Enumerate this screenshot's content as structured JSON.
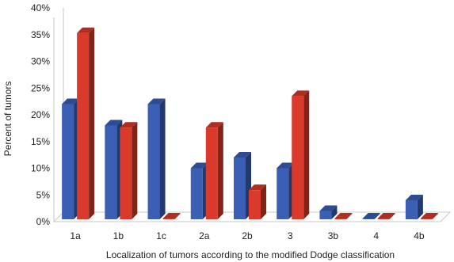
{
  "chart_data": {
    "type": "bar",
    "title": "",
    "xlabel": "Localization of tumors according to the modified Dodge classification",
    "ylabel": "Percent of tumors",
    "categories": [
      "1a",
      "1b",
      "1c",
      "2a",
      "2b",
      "3",
      "3b",
      "4",
      "4b"
    ],
    "series": [
      {
        "color": "#3a5fb5",
        "values": [
          22,
          18,
          22,
          10,
          12,
          10,
          2,
          0,
          4
        ]
      },
      {
        "color": "#d93a2b",
        "values": [
          35.3,
          17.6,
          0,
          17.6,
          5.9,
          23.5,
          0,
          0,
          0
        ]
      }
    ],
    "ylim": [
      0,
      40
    ],
    "yticks": [
      "0%",
      "5%",
      "10%",
      "15%",
      "20%",
      "25%",
      "30%",
      "35%",
      "40%"
    ],
    "grid": false,
    "legend": "none",
    "style": "3d-bar"
  }
}
